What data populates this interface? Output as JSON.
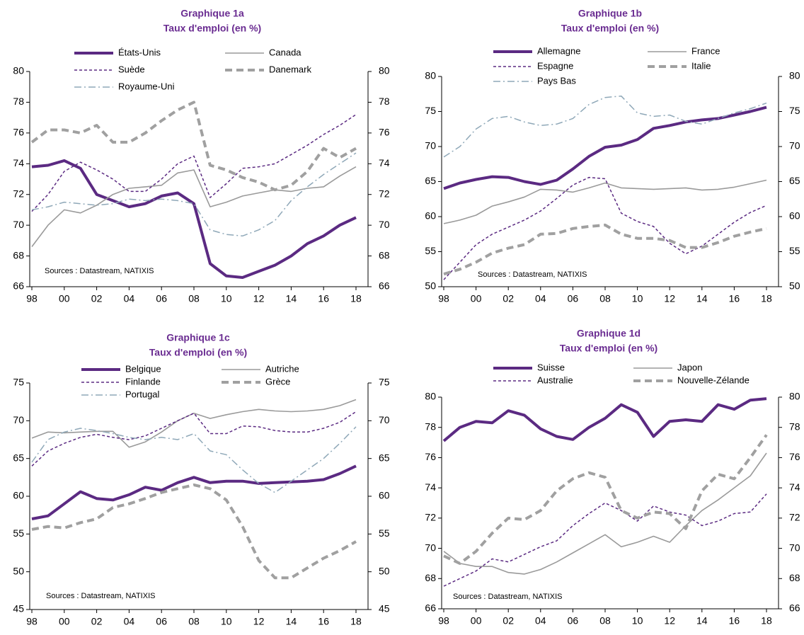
{
  "chart_data": [
    {
      "type": "line",
      "title": "Graphique 1a",
      "subtitle": "Taux d'emploi (en %)",
      "source": "Sources : Datastream, NATIXIS",
      "mirror_y_axis": true,
      "grid": false,
      "x": [
        1998,
        1999,
        2000,
        2001,
        2002,
        2003,
        2004,
        2005,
        2006,
        2007,
        2008,
        2009,
        2010,
        2011,
        2012,
        2013,
        2014,
        2015,
        2016,
        2017,
        2018
      ],
      "xlim": [
        1998,
        2018
      ],
      "xticks": [
        {
          "value": 1998,
          "label": "98"
        },
        {
          "value": 2000,
          "label": "00"
        },
        {
          "value": 2002,
          "label": "02"
        },
        {
          "value": 2004,
          "label": "04"
        },
        {
          "value": 2006,
          "label": "06"
        },
        {
          "value": 2008,
          "label": "08"
        },
        {
          "value": 2010,
          "label": "10"
        },
        {
          "value": 2012,
          "label": "12"
        },
        {
          "value": 2014,
          "label": "14"
        },
        {
          "value": 2016,
          "label": "16"
        },
        {
          "value": 2018,
          "label": "18"
        }
      ],
      "ylim": [
        66,
        80
      ],
      "yticks": [
        66,
        68,
        70,
        72,
        74,
        76,
        78,
        80
      ],
      "series": [
        {
          "name": "États-Unis",
          "color": "#5b2a82",
          "style": "solid-thick",
          "values": [
            73.8,
            73.9,
            74.2,
            73.7,
            72.0,
            71.6,
            71.2,
            71.4,
            71.9,
            72.1,
            71.4,
            67.5,
            66.7,
            66.6,
            67.0,
            67.4,
            68.0,
            68.8,
            69.3,
            70.0,
            70.5
          ]
        },
        {
          "name": "Canada",
          "color": "#9a9a9a",
          "style": "solid",
          "values": [
            68.6,
            70.0,
            71.0,
            70.8,
            71.3,
            72.0,
            72.4,
            72.5,
            72.6,
            73.4,
            73.6,
            71.2,
            71.5,
            71.9,
            72.1,
            72.3,
            72.2,
            72.4,
            72.5,
            73.2,
            73.8
          ]
        },
        {
          "name": "Suède",
          "color": "#5b2a82",
          "style": "dashed",
          "values": [
            70.9,
            72.0,
            73.5,
            74.1,
            73.6,
            73.0,
            72.2,
            72.2,
            73.0,
            74.0,
            74.5,
            71.8,
            72.7,
            73.7,
            73.8,
            74.0,
            74.6,
            75.2,
            75.9,
            76.5,
            77.2
          ]
        },
        {
          "name": "Danemark",
          "color": "#a0a0a0",
          "style": "dashed-thick",
          "values": [
            75.4,
            76.2,
            76.2,
            76.0,
            76.5,
            75.4,
            75.4,
            76.0,
            76.8,
            77.5,
            78.0,
            73.9,
            73.6,
            73.1,
            72.8,
            72.3,
            72.6,
            73.5,
            75.0,
            74.4,
            75.0
          ]
        },
        {
          "name": "Royaume-Uni",
          "color": "#8fa8b8",
          "style": "dashdot",
          "values": [
            71.0,
            71.2,
            71.5,
            71.4,
            71.3,
            71.4,
            71.7,
            71.6,
            71.7,
            71.6,
            71.4,
            69.7,
            69.4,
            69.3,
            69.7,
            70.3,
            71.6,
            72.5,
            73.3,
            74.0,
            74.7
          ]
        }
      ]
    },
    {
      "type": "line",
      "title": "Graphique 1b",
      "subtitle": "Taux d'emploi (en %)",
      "source": "Sources : Datastream, NATIXIS",
      "mirror_y_axis": true,
      "grid": false,
      "x": [
        1998,
        1999,
        2000,
        2001,
        2002,
        2003,
        2004,
        2005,
        2006,
        2007,
        2008,
        2009,
        2010,
        2011,
        2012,
        2013,
        2014,
        2015,
        2016,
        2017,
        2018
      ],
      "xlim": [
        1998,
        2018
      ],
      "xticks": [
        {
          "value": 1998,
          "label": "98"
        },
        {
          "value": 2000,
          "label": "00"
        },
        {
          "value": 2002,
          "label": "02"
        },
        {
          "value": 2004,
          "label": "04"
        },
        {
          "value": 2006,
          "label": "06"
        },
        {
          "value": 2008,
          "label": "08"
        },
        {
          "value": 2010,
          "label": "10"
        },
        {
          "value": 2012,
          "label": "12"
        },
        {
          "value": 2014,
          "label": "14"
        },
        {
          "value": 2016,
          "label": "16"
        },
        {
          "value": 2018,
          "label": "18"
        }
      ],
      "ylim": [
        50,
        80
      ],
      "yticks": [
        50,
        55,
        60,
        65,
        70,
        75,
        80
      ],
      "series": [
        {
          "name": "Allemagne",
          "color": "#5b2a82",
          "style": "solid-thick",
          "values": [
            64.0,
            64.8,
            65.3,
            65.7,
            65.6,
            65.0,
            64.6,
            65.2,
            66.8,
            68.6,
            69.9,
            70.2,
            71.0,
            72.6,
            73.0,
            73.5,
            73.8,
            74.0,
            74.5,
            75.0,
            75.6
          ]
        },
        {
          "name": "France",
          "color": "#9a9a9a",
          "style": "solid",
          "values": [
            59.0,
            59.5,
            60.2,
            61.5,
            62.1,
            62.8,
            63.9,
            63.8,
            63.5,
            64.1,
            64.8,
            64.1,
            64.0,
            63.9,
            64.0,
            64.1,
            63.8,
            63.9,
            64.2,
            64.7,
            65.2
          ]
        },
        {
          "name": "Espagne",
          "color": "#5b2a82",
          "style": "dashed",
          "values": [
            51.0,
            53.5,
            56.0,
            57.5,
            58.5,
            59.5,
            60.8,
            62.6,
            64.5,
            65.6,
            65.4,
            60.5,
            59.3,
            58.6,
            56.2,
            54.7,
            55.8,
            57.5,
            59.2,
            60.6,
            61.6
          ]
        },
        {
          "name": "Italie",
          "color": "#a0a0a0",
          "style": "dashed-thick",
          "values": [
            51.8,
            52.5,
            53.5,
            54.8,
            55.5,
            56.0,
            57.5,
            57.6,
            58.3,
            58.6,
            58.8,
            57.5,
            56.9,
            56.9,
            56.6,
            55.6,
            55.6,
            56.3,
            57.2,
            57.8,
            58.3
          ]
        },
        {
          "name": "Pays Bas",
          "color": "#8fa8b8",
          "style": "dashdot",
          "values": [
            68.5,
            70.0,
            72.5,
            74.0,
            74.3,
            73.5,
            73.0,
            73.2,
            74.0,
            76.0,
            77.0,
            77.2,
            74.8,
            74.3,
            74.5,
            73.6,
            73.2,
            74.0,
            74.8,
            75.4,
            76.2
          ]
        }
      ]
    },
    {
      "type": "line",
      "title": "Graphique 1c",
      "subtitle": "Taux d'emploi (en %)",
      "source": "Sources : Datastream, NATIXIS",
      "mirror_y_axis": true,
      "grid": false,
      "x": [
        1998,
        1999,
        2000,
        2001,
        2002,
        2003,
        2004,
        2005,
        2006,
        2007,
        2008,
        2009,
        2010,
        2011,
        2012,
        2013,
        2014,
        2015,
        2016,
        2017,
        2018
      ],
      "xlim": [
        1998,
        2018
      ],
      "xticks": [
        {
          "value": 1998,
          "label": "98"
        },
        {
          "value": 2000,
          "label": "00"
        },
        {
          "value": 2002,
          "label": "02"
        },
        {
          "value": 2004,
          "label": "04"
        },
        {
          "value": 2006,
          "label": "06"
        },
        {
          "value": 2008,
          "label": "08"
        },
        {
          "value": 2010,
          "label": "10"
        },
        {
          "value": 2012,
          "label": "12"
        },
        {
          "value": 2014,
          "label": "14"
        },
        {
          "value": 2016,
          "label": "16"
        },
        {
          "value": 2018,
          "label": "18"
        }
      ],
      "ylim": [
        45,
        75
      ],
      "yticks": [
        45,
        50,
        55,
        60,
        65,
        70,
        75
      ],
      "series": [
        {
          "name": "Belgique",
          "color": "#5b2a82",
          "style": "solid-thick",
          "values": [
            57.0,
            57.4,
            59.0,
            60.6,
            59.7,
            59.5,
            60.2,
            61.2,
            60.8,
            61.8,
            62.5,
            61.8,
            62.0,
            62.0,
            61.7,
            61.8,
            61.9,
            62.0,
            62.2,
            63.0,
            64.0
          ]
        },
        {
          "name": "Autriche",
          "color": "#9a9a9a",
          "style": "solid",
          "values": [
            67.7,
            68.5,
            68.4,
            68.5,
            68.6,
            68.6,
            66.5,
            67.2,
            68.5,
            70.0,
            71.0,
            70.3,
            70.8,
            71.2,
            71.5,
            71.3,
            71.2,
            71.3,
            71.5,
            72.0,
            72.8
          ]
        },
        {
          "name": "Finlande",
          "color": "#5b2a82",
          "style": "dashed",
          "values": [
            64.0,
            66.0,
            67.0,
            67.8,
            68.2,
            67.8,
            67.5,
            68.0,
            69.0,
            70.0,
            71.0,
            68.3,
            68.3,
            69.3,
            69.2,
            68.7,
            68.5,
            68.5,
            69.0,
            69.8,
            71.2
          ]
        },
        {
          "name": "Grèce",
          "color": "#a0a0a0",
          "style": "dashed-thick",
          "values": [
            55.6,
            56.0,
            55.8,
            56.5,
            57.0,
            58.5,
            59.0,
            59.7,
            60.5,
            61.0,
            61.5,
            61.0,
            59.5,
            56.0,
            51.5,
            49.2,
            49.2,
            50.5,
            51.8,
            52.8,
            54.0
          ]
        },
        {
          "name": "Portugal",
          "color": "#8fa8b8",
          "style": "dashdot",
          "values": [
            64.5,
            67.5,
            68.5,
            69.0,
            68.7,
            68.3,
            67.8,
            67.5,
            67.8,
            67.5,
            68.3,
            66.0,
            65.5,
            63.5,
            61.7,
            60.5,
            62.0,
            63.5,
            65.0,
            67.0,
            69.2
          ]
        }
      ]
    },
    {
      "type": "line",
      "title": "Graphique 1d",
      "subtitle": "Taux d'emploi (en %)",
      "source": "Sources : Datastream, NATIXIS",
      "mirror_y_axis": true,
      "grid": false,
      "x": [
        1998,
        1999,
        2000,
        2001,
        2002,
        2003,
        2004,
        2005,
        2006,
        2007,
        2008,
        2009,
        2010,
        2011,
        2012,
        2013,
        2014,
        2015,
        2016,
        2017,
        2018
      ],
      "xlim": [
        1998,
        2018
      ],
      "xticks": [
        {
          "value": 1998,
          "label": "98"
        },
        {
          "value": 2000,
          "label": "00"
        },
        {
          "value": 2002,
          "label": "02"
        },
        {
          "value": 2004,
          "label": "04"
        },
        {
          "value": 2006,
          "label": "06"
        },
        {
          "value": 2008,
          "label": "08"
        },
        {
          "value": 2010,
          "label": "10"
        },
        {
          "value": 2012,
          "label": "12"
        },
        {
          "value": 2014,
          "label": "14"
        },
        {
          "value": 2016,
          "label": "16"
        },
        {
          "value": 2018,
          "label": "18"
        }
      ],
      "ylim": [
        66,
        80
      ],
      "yticks": [
        66,
        68,
        70,
        72,
        74,
        76,
        78,
        80
      ],
      "series": [
        {
          "name": "Suisse",
          "color": "#5b2a82",
          "style": "solid-thick",
          "values": [
            77.1,
            78.0,
            78.4,
            78.3,
            79.1,
            78.8,
            77.9,
            77.4,
            77.2,
            78.0,
            78.6,
            79.5,
            79.0,
            77.4,
            78.4,
            78.5,
            78.4,
            79.5,
            79.2,
            79.8,
            79.9
          ]
        },
        {
          "name": "Japon",
          "color": "#9a9a9a",
          "style": "solid",
          "values": [
            69.8,
            69.0,
            68.8,
            68.8,
            68.4,
            68.3,
            68.6,
            69.1,
            69.7,
            70.3,
            70.9,
            70.1,
            70.4,
            70.8,
            70.4,
            71.5,
            72.5,
            73.2,
            74.0,
            74.8,
            76.3
          ]
        },
        {
          "name": "Australie",
          "color": "#5b2a82",
          "style": "dashed",
          "values": [
            67.5,
            68.0,
            68.5,
            69.3,
            69.1,
            69.6,
            70.1,
            70.5,
            71.5,
            72.3,
            73.0,
            72.5,
            71.8,
            72.8,
            72.4,
            72.2,
            71.5,
            71.8,
            72.3,
            72.4,
            73.6
          ]
        },
        {
          "name": "Nouvelle-Zélande",
          "color": "#a0a0a0",
          "style": "dashed-thick",
          "values": [
            69.5,
            69.0,
            69.8,
            71.0,
            72.0,
            71.9,
            72.5,
            73.8,
            74.6,
            75.0,
            74.7,
            72.5,
            72.0,
            72.4,
            72.3,
            71.3,
            73.8,
            74.9,
            74.6,
            76.0,
            77.5
          ]
        }
      ]
    }
  ]
}
